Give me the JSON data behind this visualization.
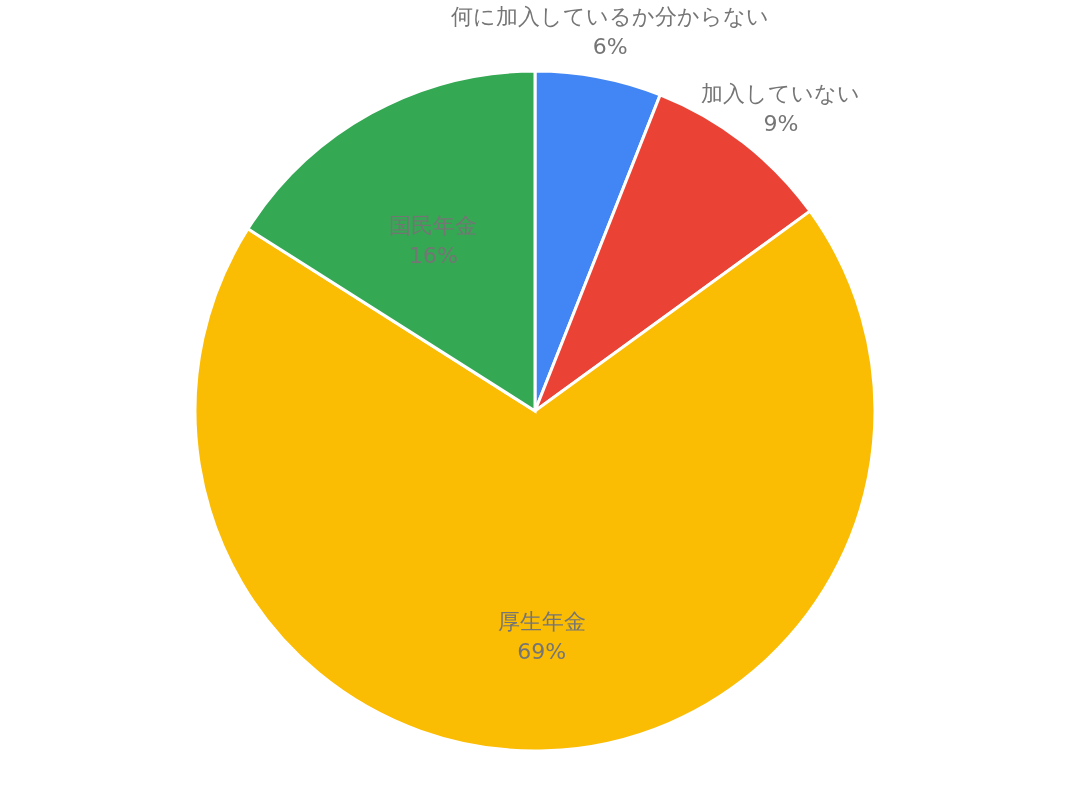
{
  "chart_data": {
    "type": "pie",
    "categories": [
      "何に加入しているか分からない",
      "加入していない",
      "厚生年金",
      "国民年金"
    ],
    "values": [
      6,
      9,
      69,
      16
    ],
    "value_labels": [
      "6%",
      "9%",
      "69%",
      "16%"
    ],
    "colors": [
      "#4285f4",
      "#ea4335",
      "#fbbc04",
      "#34a853"
    ],
    "legend": false
  }
}
